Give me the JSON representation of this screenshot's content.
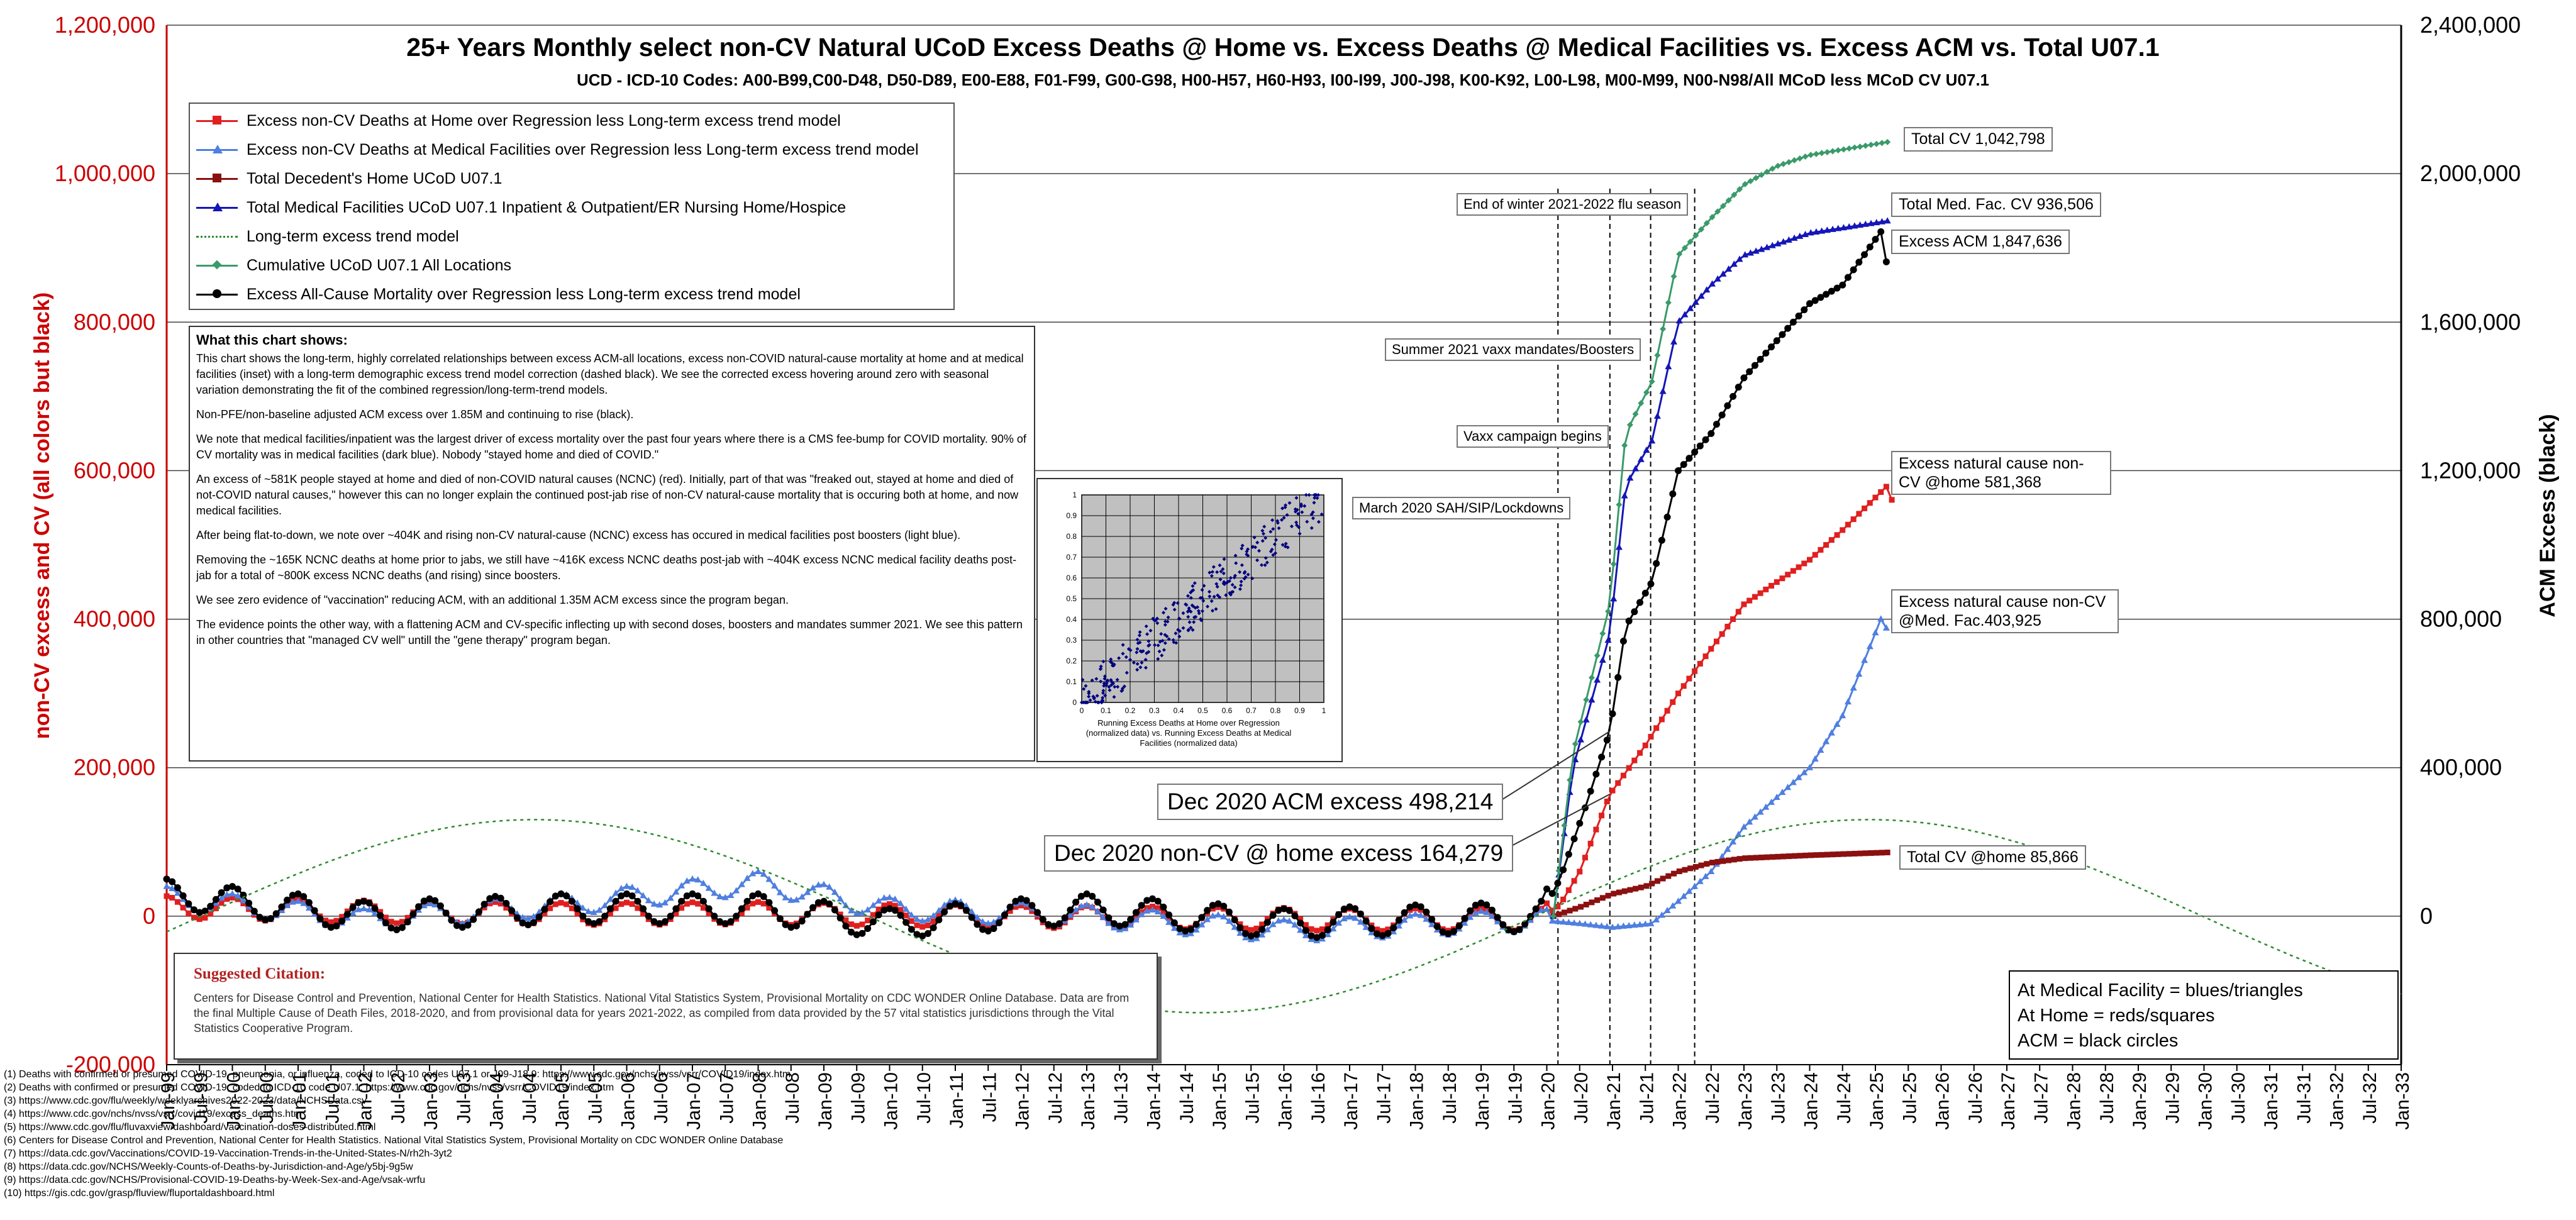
{
  "title": "25+ Years Monthly select non-CV Natural UCoD Excess Deaths @ Home vs. Excess Deaths @ Medical Facilities vs. Excess ACM vs. Total U07.1",
  "subtitle": "UCD - ICD-10 Codes: A00-B99,C00-D48, D50-D89, E00-E88, F01-F99, G00-G98, H00-H57, H60-H93, I00-I99, J00-J98, K00-K92, L00-L98, M00-M99, N00-N98/All MCoD less MCoD CV U07.1",
  "ylabel_left": "non-CV excess and CV (all colors but black)",
  "ylabel_right": "ACM Excess (black)",
  "colors": {
    "red": "#e02020",
    "lightblue": "#4f7fe0",
    "darkred": "#8b1010",
    "darkblue": "#1515b8",
    "green": "#3a9a6a",
    "black": "#000000",
    "trend": "#2e8b2e",
    "axis_red": "#cc0000"
  },
  "legend": [
    {
      "label": "Excess non-CV Deaths at Home over Regression less Long-term excess trend model",
      "color": "#e02020",
      "marker": "square",
      "dash": false
    },
    {
      "label": "Excess non-CV Deaths at Medical Facilities over Regression less Long-term excess trend model",
      "color": "#4f7fe0",
      "marker": "triangle",
      "dash": false
    },
    {
      "label": "Total Decedent's Home UCoD U07.1",
      "color": "#8b1010",
      "marker": "square",
      "dash": false
    },
    {
      "label": "Total Medical Facilities UCoD U07.1 Inpatient & Outpatient/ER Nursing Home/Hospice",
      "color": "#1515b8",
      "marker": "triangle",
      "dash": false
    },
    {
      "label": "Long-term excess trend model",
      "color": "#2e8b2e",
      "marker": "none",
      "dash": true
    },
    {
      "label": "Cumulative UCoD U07.1 All Locations",
      "color": "#3a9a6a",
      "marker": "diamond",
      "dash": false
    },
    {
      "label": "Excess All-Cause Mortality over Regression less Long-term excess trend model",
      "color": "#000000",
      "marker": "circle",
      "dash": false
    }
  ],
  "explanation": {
    "title": "What this chart shows:",
    "paragraphs": [
      "This chart shows the long-term, highly correlated relationships between excess ACM-all locations, excess non-COVID natural-cause mortality at home and at medical facilities (inset) with a long-term demographic excess trend model correction (dashed black). We see the corrected excess hovering around zero with seasonal variation demonstrating the fit of the combined regression/long-term-trend models.",
      "Non-PFE/non-baseline adjusted ACM excess over 1.85M and continuing to rise (black).",
      "We note that medical facilities/inpatient was the largest driver of excess mortality over the past four years where there is a CMS fee-bump for COVID mortality. 90% of CV mortality was in medical facilities (dark blue). Nobody \"stayed home and died of COVID.\"",
      "An excess of ~581K people stayed at home and died of non-COVID natural causes (NCNC) (red). Initially, part of that was \"freaked out, stayed at home and died of not-COVID natural causes,\" however this can no longer explain the continued post-jab rise of non-CV natural-cause mortality that is occuring both at home, and now medical facilities.",
      "After being flat-to-down, we note over ~404K and rising non-CV natural-cause (NCNC) excess has occured in medical facilities post boosters (light blue).",
      "Removing the ~165K NCNC deaths at home prior to jabs, we still have ~416K excess NCNC deaths post-jab with ~404K excess NCNC medical facility deaths post-jab for a total of ~800K excess NCNC deaths (and rising) since boosters.",
      "We see zero evidence of \"vaccination\" reducing ACM, with an additional 1.35M ACM excess since the program began.",
      "The evidence points the other way, with a flattening ACM and CV-specific inflecting up with second doses, boosters and mandates summer 2021. We see this pattern in other countries that \"managed CV well\" untill the \"gene therapy\" program began."
    ]
  },
  "inset": {
    "xlabel": "Running Excess Deaths at Home over Regression (normalized data) vs. Running Excess Deaths at Medical Facilities (normalized data)",
    "ticks": [
      "0",
      "0.1",
      "0.2",
      "0.3",
      "0.4",
      "0.5",
      "0.6",
      "0.7",
      "0.8",
      "0.9",
      "1"
    ],
    "ytick_labels": [
      "1",
      "0.9",
      "0.8",
      "0.7",
      "0.6",
      "0.5",
      "0.4",
      "0.3",
      "0.2",
      "0.1",
      "0"
    ],
    "point_color": "#000080",
    "bg": "#c0c0c0"
  },
  "events": [
    {
      "label": "March 2020 SAH/SIP/Lockdowns"
    },
    {
      "label": "Vaxx campaign begins"
    },
    {
      "label": "Summer 2021 vaxx mandates/Boosters"
    },
    {
      "label": "End of winter 2021-2022 flu season"
    }
  ],
  "callouts": {
    "total_cv": "Total CV 1,042,798",
    "total_med_fac": "Total Med. Fac. CV 936,506",
    "excess_acm": "Excess ACM 1,847,636",
    "home_ncnc": "Excess natural cause non-CV @home 581,368",
    "medfac_ncnc": "Excess natural cause non-CV @Med. Fac.403,925",
    "total_cv_home": "Total CV @home 85,866",
    "dec2020_acm": "Dec 2020 ACM excess 498,214",
    "dec2020_home": "Dec 2020 non-CV @ home excess 164,279"
  },
  "key_box": [
    "At Medical Facility = blues/triangles",
    "At Home = reds/squares",
    "ACM = black circles"
  ],
  "citation": {
    "title": "Suggested Citation:",
    "text": "Centers for Disease Control and Prevention, National Center for Health Statistics. National Vital Statistics System, Provisional Mortality on CDC WONDER Online Database. Data are from the final Multiple Cause of Death Files, 2018-2020, and from provisional data for years 2021-2022, as compiled from data provided by the 57 vital statistics jurisdictions through the Vital Statistics Cooperative Program."
  },
  "footnotes": [
    "(1) Deaths with confirmed or presumed COVID-19, pneumonia, or influenza, coded to ICD-10 codes U07.1 or J09-J18.9: https://www.cdc.gov/nchs/nvss/vsrr/COVID19/index.htm",
    "(2) Deaths with confirmed or presumed COVID-19, coded to ICD-10 code U07.1: https://www.cdc.gov/nchs/nvss/vsrr/COVID19/index.htm",
    "(3) https://www.cdc.gov/flu/weekly/weeklyarchives2022-2023/data/NCHSData.csv",
    "(4) https://www.cdc.gov/nchs/nvss/vsrr/covid19/excess_deaths.htm",
    "(5) https://www.cdc.gov/flu/fluvaxview/dashboard/vaccination-doses-distributed.html",
    "(6) Centers for Disease Control and Prevention, National Center for Health Statistics. National Vital Statistics System, Provisional Mortality on CDC WONDER Online Database",
    "(7) https://data.cdc.gov/Vaccinations/COVID-19-Vaccination-Trends-in-the-United-States-N/rh2h-3yt2",
    "(8) https://data.cdc.gov/NCHS/Weekly-Counts-of-Deaths-by-Jurisdiction-and-Age/y5bj-9g5w",
    "(9) https://data.cdc.gov/NCHS/Provisional-COVID-19-Deaths-by-Week-Sex-and-Age/vsak-wrfu",
    "(10) https://gis.cdc.gov/grasp/fluview/fluportaldashboard.html"
  ],
  "chart_data": {
    "type": "line",
    "title": "25+ Years Monthly select non-CV Natural UCoD Excess Deaths @ Home vs. Excess Deaths @ Medical Facilities vs. Excess ACM vs. Total U07.1",
    "ylabel": "non-CV excess and CV (all colors but black)",
    "y2label": "ACM Excess (black)",
    "ylim": [
      -200000,
      1200000
    ],
    "y2lim": [
      -400000,
      2400000
    ],
    "yticks_left": [
      "1,200,000",
      "1,000,000",
      "800,000",
      "600,000",
      "400,000",
      "200,000",
      "0",
      "-200,000"
    ],
    "yticks_right": [
      "2,400,000",
      "2,000,000",
      "1,600,000",
      "1,200,000",
      "800,000",
      "400,000",
      "0"
    ],
    "yticks_right_values": [
      2400000,
      2000000,
      1600000,
      1200000,
      800000,
      400000,
      0
    ],
    "x_range": [
      "Jan-99",
      "Jan-33"
    ],
    "x_start_year": 1999,
    "x_end_year": 2033,
    "x_tick_labels": [
      "Jan-99",
      "Jul-99",
      "Jan-00",
      "Jul-00",
      "Jan-01",
      "Jul-01",
      "Jan-02",
      "Jul-02",
      "Jan-03",
      "Jul-03",
      "Jan-04",
      "Jul-04",
      "Jan-05",
      "Jul-05",
      "Jan-06",
      "Jul-06",
      "Jan-07",
      "Jul-07",
      "Jan-08",
      "Jul-08",
      "Jan-09",
      "Jul-09",
      "Jan-10",
      "Jul-10",
      "Jan-11",
      "Jul-11",
      "Jan-12",
      "Jul-12",
      "Jan-13",
      "Jul-13",
      "Jan-14",
      "Jul-14",
      "Jan-15",
      "Jul-15",
      "Jan-16",
      "Jul-16",
      "Jan-17",
      "Jul-17",
      "Jan-18",
      "Jul-18",
      "Jan-19",
      "Jul-19",
      "Jan-20",
      "Jul-20",
      "Jan-21",
      "Jul-21",
      "Jan-22",
      "Jul-22",
      "Jan-23",
      "Jul-23",
      "Jan-24",
      "Jul-24",
      "Jan-25",
      "Jul-25",
      "Jan-26",
      "Jul-26",
      "Jan-27",
      "Jul-27",
      "Jan-28",
      "Jul-28",
      "Jan-29",
      "Jul-29",
      "Jan-30",
      "Jul-30",
      "Jan-31",
      "Jul-31",
      "Jan-32",
      "Jul-32",
      "Jan-33"
    ],
    "grid": "horizontal",
    "event_dates": [
      2020.17,
      2020.96,
      2021.58,
      2022.25
    ],
    "series": [
      {
        "name": "Excess non-CV Deaths at Home over Regression less Long-term excess trend model",
        "color": "#e02020",
        "marker": "square",
        "axis": "left",
        "points": [
          [
            1999,
            12000
          ],
          [
            2002,
            6000
          ],
          [
            2005,
            3000
          ],
          [
            2008,
            4000
          ],
          [
            2011,
            0
          ],
          [
            2014,
            -2000
          ],
          [
            2017,
            -5000
          ],
          [
            2019.9,
            -4000
          ],
          [
            2020.2,
            15000
          ],
          [
            2020.5,
            60000
          ],
          [
            2020.96,
            164279
          ],
          [
            2021.5,
            230000
          ],
          [
            2022,
            300000
          ],
          [
            2022.5,
            360000
          ],
          [
            2023,
            420000
          ],
          [
            2023.5,
            450000
          ],
          [
            2024,
            480000
          ],
          [
            2024.5,
            520000
          ],
          [
            2025.2,
            581368
          ],
          [
            2025.3,
            540000
          ]
        ]
      },
      {
        "name": "Excess non-CV Deaths at Medical Facilities over Regression less Long-term excess trend model",
        "color": "#4f7fe0",
        "marker": "triangle",
        "axis": "left",
        "points": [
          [
            1999,
            25000
          ],
          [
            2002,
            -5000
          ],
          [
            2005,
            15000
          ],
          [
            2008,
            45000
          ],
          [
            2010,
            10000
          ],
          [
            2013,
            0
          ],
          [
            2016,
            -20000
          ],
          [
            2019.9,
            -5000
          ],
          [
            2020.5,
            -10000
          ],
          [
            2021,
            -15000
          ],
          [
            2021.6,
            -10000
          ],
          [
            2022,
            20000
          ],
          [
            2022.5,
            60000
          ],
          [
            2023,
            120000
          ],
          [
            2023.5,
            160000
          ],
          [
            2024,
            200000
          ],
          [
            2024.5,
            270000
          ],
          [
            2025.1,
            403925
          ],
          [
            2025.2,
            380000
          ]
        ]
      },
      {
        "name": "Total Decedent's Home UCoD U07.1",
        "color": "#8b1010",
        "marker": "square",
        "axis": "left",
        "points": [
          [
            2020.1,
            0
          ],
          [
            2020.5,
            12000
          ],
          [
            2021,
            30000
          ],
          [
            2021.5,
            40000
          ],
          [
            2022,
            60000
          ],
          [
            2022.5,
            72000
          ],
          [
            2023,
            78000
          ],
          [
            2024,
            82000
          ],
          [
            2025.2,
            85866
          ]
        ]
      },
      {
        "name": "Total Medical Facilities UCoD U07.1 Inpatient & Outpatient/ER Nursing Home/Hospice",
        "color": "#1515b8",
        "marker": "triangle",
        "axis": "left",
        "points": [
          [
            2020.1,
            0
          ],
          [
            2020.4,
            200000
          ],
          [
            2020.96,
            380000
          ],
          [
            2021.2,
            580000
          ],
          [
            2021.6,
            640000
          ],
          [
            2022,
            800000
          ],
          [
            2022.5,
            850000
          ],
          [
            2023,
            890000
          ],
          [
            2023.5,
            905000
          ],
          [
            2024,
            920000
          ],
          [
            2025.2,
            936506
          ]
        ]
      },
      {
        "name": "Cumulative UCoD U07.1 All Locations",
        "color": "#3a9a6a",
        "marker": "diamond",
        "axis": "left",
        "points": [
          [
            2020.1,
            0
          ],
          [
            2020.4,
            220000
          ],
          [
            2020.96,
            420000
          ],
          [
            2021.2,
            650000
          ],
          [
            2021.6,
            720000
          ],
          [
            2022,
            890000
          ],
          [
            2022.5,
            940000
          ],
          [
            2023,
            985000
          ],
          [
            2023.5,
            1010000
          ],
          [
            2024,
            1025000
          ],
          [
            2025.2,
            1042798
          ]
        ]
      },
      {
        "name": "Excess All-Cause Mortality over Regression less Long-term excess trend model",
        "color": "#000000",
        "marker": "circle",
        "axis": "right",
        "points": [
          [
            1999,
            60000
          ],
          [
            2002,
            0
          ],
          [
            2005,
            20000
          ],
          [
            2008,
            20000
          ],
          [
            2010,
            -20000
          ],
          [
            2013,
            20000
          ],
          [
            2016,
            -20000
          ],
          [
            2019.9,
            0
          ],
          [
            2020.2,
            100000
          ],
          [
            2020.6,
            300000
          ],
          [
            2020.96,
            498214
          ],
          [
            2021.2,
            780000
          ],
          [
            2021.6,
            900000
          ],
          [
            2022,
            1200000
          ],
          [
            2022.5,
            1300000
          ],
          [
            2023,
            1450000
          ],
          [
            2023.5,
            1550000
          ],
          [
            2024,
            1650000
          ],
          [
            2024.5,
            1700000
          ],
          [
            2025.1,
            1847636
          ],
          [
            2025.2,
            1720000
          ]
        ]
      },
      {
        "name": "Long-term excess trend model",
        "color": "#2e8b2e",
        "marker": "none",
        "dash": true,
        "axis": "left",
        "model": "sine",
        "amplitude": 130000,
        "period_years": 20.3,
        "peak_year": 2004.6
      }
    ]
  }
}
